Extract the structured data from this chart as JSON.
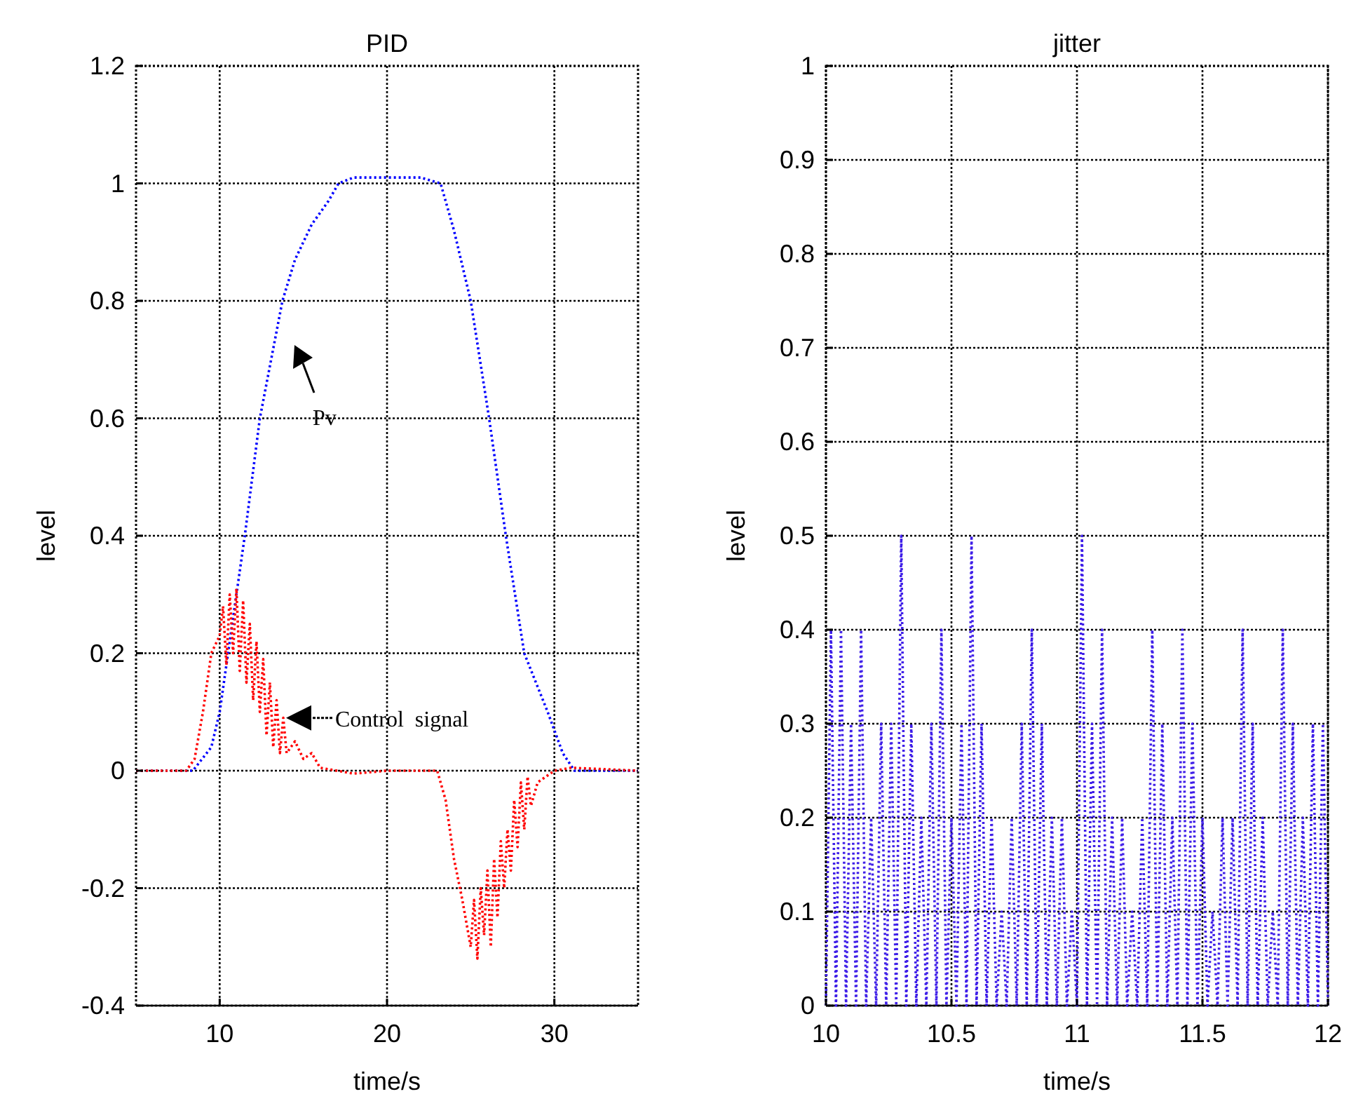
{
  "chart_data": [
    {
      "type": "line",
      "title": "PID",
      "xlabel": "time/s",
      "ylabel": "level",
      "xlim": [
        5,
        35
      ],
      "xticks": [
        10,
        20,
        30
      ],
      "ylim": [
        -0.4,
        1.2
      ],
      "yticks": [
        -0.4,
        -0.2,
        0,
        0.2,
        0.4,
        0.6,
        0.8,
        1,
        1.2
      ],
      "grid": true,
      "line_style": "dotted",
      "annotations": [
        "Pv",
        {
          "text": "Control  signal",
          "x": 13.8,
          "y": 0.09
        }
      ],
      "series": [
        {
          "color": "#0000ff",
          "x": [
            5,
            8.4,
            9.5,
            10,
            10.5,
            11.5,
            12.4,
            13.75,
            14.5,
            15.5,
            16.5,
            17.1,
            18,
            22,
            23.2,
            24,
            25,
            26.1,
            27.1,
            28.2,
            29.6,
            30.5,
            31.2,
            35
          ],
          "values": [
            0,
            0,
            0.04,
            0.1,
            0.2,
            0.4,
            0.6,
            0.8,
            0.87,
            0.93,
            0.97,
            1.0,
            1.01,
            1.01,
            1.0,
            0.92,
            0.8,
            0.6,
            0.4,
            0.2,
            0.1,
            0.03,
            0,
            0
          ]
        },
        {
          "color": "#ff0000",
          "x": [
            5,
            8,
            8.5,
            9,
            9.5,
            10,
            10.2,
            10.4,
            10.6,
            10.8,
            11,
            11.2,
            11.4,
            11.6,
            11.8,
            12,
            12.2,
            12.4,
            12.6,
            12.8,
            13,
            13.2,
            13.4,
            13.6,
            13.8,
            14,
            14.5,
            15,
            15.5,
            16,
            17,
            18,
            20,
            23,
            23.5,
            24,
            24.5,
            25,
            25.2,
            25.4,
            25.6,
            25.8,
            26,
            26.2,
            26.4,
            26.6,
            26.8,
            27,
            27.2,
            27.4,
            27.6,
            27.8,
            28,
            28.2,
            28.4,
            28.6,
            29,
            29.5,
            30,
            31,
            35
          ],
          "values": [
            0,
            0,
            0.02,
            0.1,
            0.2,
            0.23,
            0.28,
            0.18,
            0.3,
            0.2,
            0.31,
            0.17,
            0.29,
            0.15,
            0.25,
            0.12,
            0.22,
            0.1,
            0.19,
            0.06,
            0.15,
            0.04,
            0.12,
            0.03,
            0.09,
            0.03,
            0.05,
            0.02,
            0.03,
            0.005,
            0,
            -0.005,
            0,
            0,
            -0.05,
            -0.15,
            -0.22,
            -0.3,
            -0.22,
            -0.32,
            -0.2,
            -0.28,
            -0.17,
            -0.3,
            -0.15,
            -0.25,
            -0.12,
            -0.2,
            -0.1,
            -0.17,
            -0.05,
            -0.13,
            -0.02,
            -0.1,
            -0.01,
            -0.06,
            -0.02,
            -0.01,
            0,
            0.005,
            0
          ]
        }
      ]
    },
    {
      "type": "line",
      "title": "jitter",
      "xlabel": "time/s",
      "ylabel": "level",
      "xlim": [
        10,
        12
      ],
      "xticks": [
        10,
        10.5,
        11,
        11.5,
        12
      ],
      "ylim": [
        0,
        1
      ],
      "yticks": [
        0,
        0.1,
        0.2,
        0.3,
        0.4,
        0.5,
        0.6,
        0.7,
        0.8,
        0.9,
        1
      ],
      "grid": true,
      "line_style": "dotted",
      "series": [
        {
          "color": "#3f1fe8",
          "x": [
            10,
            10.02,
            10.04,
            10.06,
            10.08,
            10.1,
            10.12,
            10.14,
            10.16,
            10.18,
            10.2,
            10.22,
            10.24,
            10.26,
            10.28,
            10.3,
            10.32,
            10.34,
            10.36,
            10.38,
            10.4,
            10.42,
            10.44,
            10.46,
            10.48,
            10.5,
            10.52,
            10.54,
            10.56,
            10.58,
            10.6,
            10.62,
            10.64,
            10.66,
            10.68,
            10.7,
            10.72,
            10.74,
            10.76,
            10.78,
            10.8,
            10.82,
            10.84,
            10.86,
            10.88,
            10.9,
            10.92,
            10.94,
            10.96,
            10.98,
            11,
            11.02,
            11.04,
            11.06,
            11.08,
            11.1,
            11.12,
            11.14,
            11.16,
            11.18,
            11.2,
            11.22,
            11.24,
            11.26,
            11.28,
            11.3,
            11.32,
            11.34,
            11.36,
            11.38,
            11.4,
            11.42,
            11.44,
            11.46,
            11.48,
            11.5,
            11.52,
            11.54,
            11.56,
            11.58,
            11.6,
            11.62,
            11.64,
            11.66,
            11.68,
            11.7,
            11.72,
            11.74,
            11.76,
            11.78,
            11.8,
            11.82,
            11.84,
            11.86,
            11.88,
            11.9,
            11.92,
            11.94,
            11.96,
            11.98,
            12
          ],
          "values": [
            0,
            0.4,
            0,
            0.4,
            0,
            0.3,
            0,
            0.4,
            0,
            0.2,
            0,
            0.3,
            0,
            0.3,
            0,
            0.5,
            0,
            0.3,
            0,
            0.2,
            0,
            0.3,
            0,
            0.4,
            0,
            0.2,
            0,
            0.3,
            0,
            0.5,
            0,
            0.3,
            0,
            0.2,
            0,
            0.1,
            0,
            0.2,
            0,
            0.3,
            0,
            0.4,
            0,
            0.3,
            0,
            0.2,
            0,
            0.2,
            0,
            0.1,
            0,
            0.5,
            0,
            0.3,
            0,
            0.4,
            0,
            0.2,
            0,
            0.2,
            0,
            0.1,
            0,
            0.2,
            0,
            0.4,
            0,
            0.3,
            0,
            0.2,
            0,
            0.4,
            0,
            0.3,
            0,
            0.2,
            0,
            0.1,
            0,
            0.2,
            0,
            0.2,
            0,
            0.4,
            0,
            0.3,
            0,
            0.2,
            0,
            0.1,
            0,
            0.4,
            0,
            0.3,
            0,
            0.2,
            0,
            0.3,
            0,
            0.3,
            0
          ]
        }
      ]
    }
  ]
}
